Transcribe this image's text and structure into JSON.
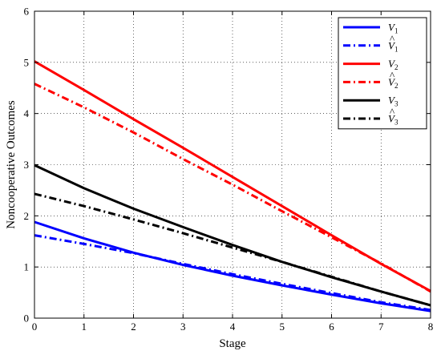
{
  "chart_data": {
    "type": "line",
    "xlabel": "Stage",
    "ylabel": "Noncooperative Outcomes",
    "xlim": [
      0,
      8
    ],
    "ylim": [
      0,
      6
    ],
    "xticks": [
      0,
      1,
      2,
      3,
      4,
      5,
      6,
      7,
      8
    ],
    "yticks": [
      0,
      1,
      2,
      3,
      4,
      5,
      6
    ],
    "grid": true,
    "legend_position": "top-right",
    "x": [
      0,
      1,
      2,
      3,
      4,
      5,
      6,
      7,
      8
    ],
    "series": [
      {
        "name": "V1",
        "label_base": "V",
        "label_sub": "1",
        "hat": false,
        "color": "#0000ff",
        "dash": "solid",
        "values": [
          1.88,
          1.56,
          1.28,
          1.04,
          0.83,
          0.64,
          0.46,
          0.29,
          0.14
        ]
      },
      {
        "name": "V̂1",
        "label_base": "V",
        "label_sub": "1",
        "hat": true,
        "color": "#0000ff",
        "dash": "dashdot",
        "values": [
          1.62,
          1.45,
          1.27,
          1.06,
          0.86,
          0.67,
          0.49,
          0.31,
          0.16
        ]
      },
      {
        "name": "V2",
        "label_base": "V",
        "label_sub": "2",
        "hat": false,
        "color": "#ff0000",
        "dash": "solid",
        "values": [
          5.02,
          4.46,
          3.89,
          3.33,
          2.76,
          2.19,
          1.62,
          1.06,
          0.53
        ]
      },
      {
        "name": "V̂2",
        "label_base": "V",
        "label_sub": "2",
        "hat": true,
        "color": "#ff0000",
        "dash": "dashdot",
        "values": [
          4.58,
          4.12,
          3.63,
          3.11,
          2.61,
          2.09,
          1.58,
          1.07,
          0.52
        ]
      },
      {
        "name": "V3",
        "label_base": "V",
        "label_sub": "3",
        "hat": false,
        "color": "#000000",
        "dash": "solid",
        "values": [
          2.99,
          2.54,
          2.14,
          1.78,
          1.43,
          1.1,
          0.8,
          0.52,
          0.25
        ]
      },
      {
        "name": "V̂3",
        "label_base": "V",
        "label_sub": "3",
        "hat": true,
        "color": "#000000",
        "dash": "dashdot",
        "values": [
          2.43,
          2.19,
          1.93,
          1.66,
          1.38,
          1.1,
          0.81,
          0.52,
          0.25
        ]
      }
    ]
  }
}
